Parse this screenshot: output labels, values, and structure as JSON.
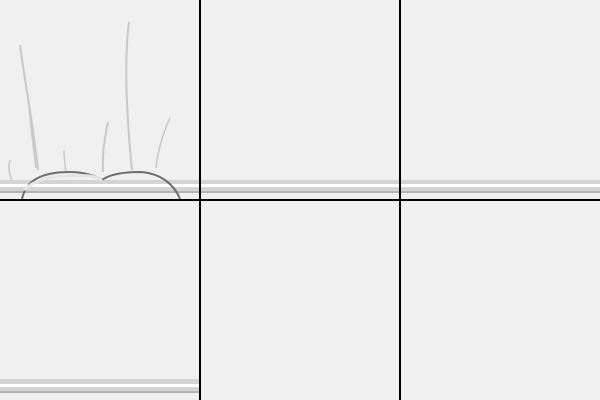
{
  "colors": {
    "tile_background": "#f0f0f0",
    "tile_background_dark": "#ebebeb",
    "grid_line": "#000000",
    "ledge_light": "#ffffff",
    "ledge_mid": "#d4d4d4",
    "ledge_dark": "#b3b3b3",
    "stroke_faint": "#c8c8c8",
    "arc_dark": "#6e6e6e"
  },
  "grid": {
    "rows": 2,
    "columns": 3
  },
  "tiles": [
    {
      "name": "tile-1",
      "content": "stems-and-arch",
      "icon": "sketch-stems-icon"
    },
    {
      "name": "tile-2",
      "content": "ledge",
      "icon": "ledge-icon"
    },
    {
      "name": "tile-3",
      "content": "ledge",
      "icon": "ledge-icon"
    },
    {
      "name": "tile-4",
      "content": "ledge",
      "icon": "ledge-icon"
    },
    {
      "name": "tile-5",
      "content": "blank",
      "icon": ""
    },
    {
      "name": "tile-6",
      "content": "blank",
      "icon": ""
    }
  ]
}
